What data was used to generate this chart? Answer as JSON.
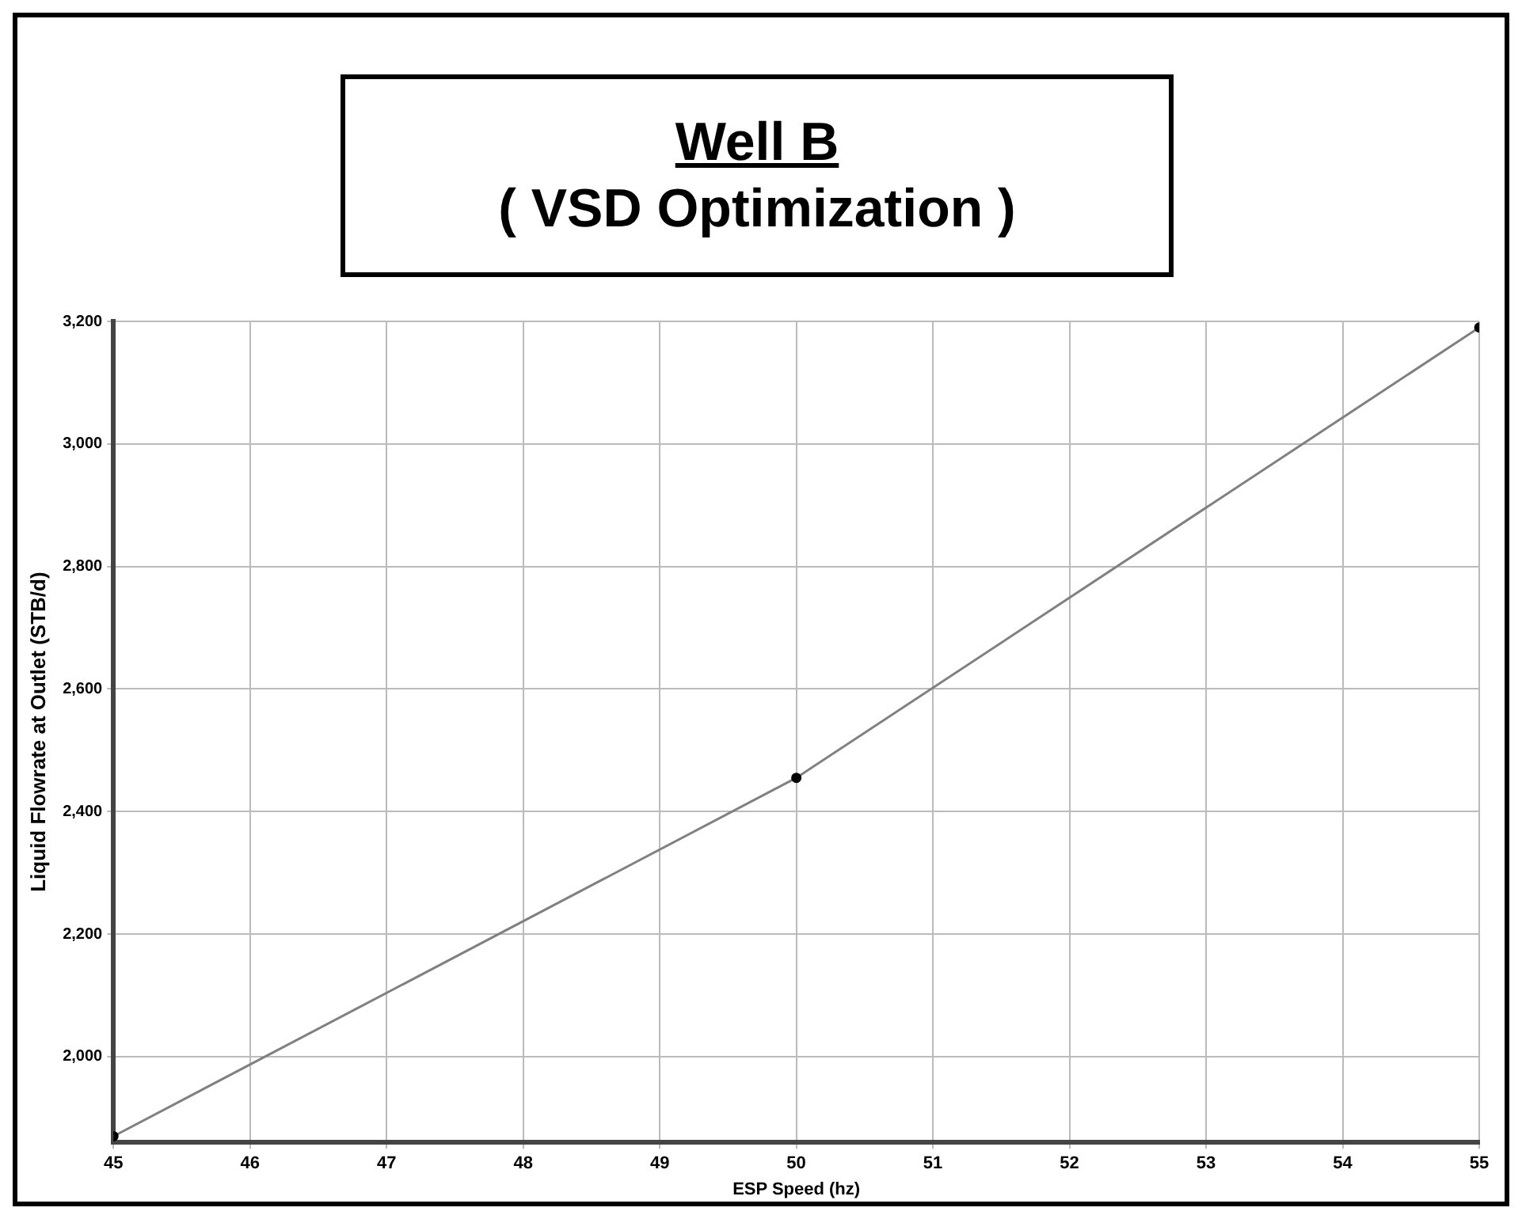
{
  "chart_data": {
    "type": "line",
    "title": "Well B",
    "subtitle": "( VSD Optimization )",
    "xlabel": "ESP Speed (hz)",
    "ylabel": "Liquid Flowrate at Outlet (STB/d)",
    "x": [
      45,
      50,
      55
    ],
    "series": [
      {
        "color": "#808080",
        "values": [
          1870,
          2455,
          3190
        ]
      }
    ],
    "xlim": [
      45,
      55
    ],
    "xticks": [
      45,
      46,
      47,
      48,
      49,
      50,
      51,
      52,
      53,
      54,
      55
    ],
    "ylim": [
      1860,
      3200
    ],
    "yticks": [
      {
        "value": 2000,
        "label": "2,000"
      },
      {
        "value": 2200,
        "label": "2,200"
      },
      {
        "value": 2400,
        "label": "2,400"
      },
      {
        "value": 2600,
        "label": "2,600"
      },
      {
        "value": 2800,
        "label": "2,800"
      },
      {
        "value": 3000,
        "label": "3,000"
      },
      {
        "value": 3200,
        "label": "3,200"
      }
    ],
    "grid": true,
    "marker": "circle",
    "line_style": "solid"
  }
}
